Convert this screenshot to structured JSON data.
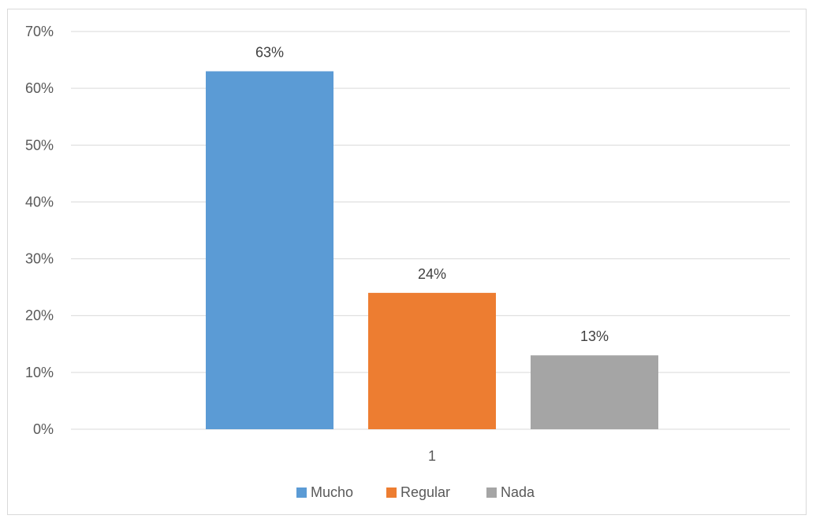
{
  "chart_data": {
    "type": "bar",
    "title": "",
    "xlabel": "",
    "ylabel": "",
    "categories": [
      "1"
    ],
    "ylim": [
      0,
      0.7
    ],
    "y_ticks": [
      0,
      0.1,
      0.2,
      0.3,
      0.4,
      0.5,
      0.6,
      0.7
    ],
    "y_tick_labels": [
      "0%",
      "10%",
      "20%",
      "30%",
      "40%",
      "50%",
      "60%",
      "70%"
    ],
    "grid": true,
    "legend_position": "bottom",
    "series": [
      {
        "name": "Mucho",
        "values": [
          0.63
        ],
        "label": "63%",
        "color": "#5b9bd5"
      },
      {
        "name": "Regular",
        "values": [
          0.24
        ],
        "label": "24%",
        "color": "#ed7d31"
      },
      {
        "name": "Nada",
        "values": [
          0.13
        ],
        "label": "13%",
        "color": "#a5a5a5"
      }
    ]
  }
}
